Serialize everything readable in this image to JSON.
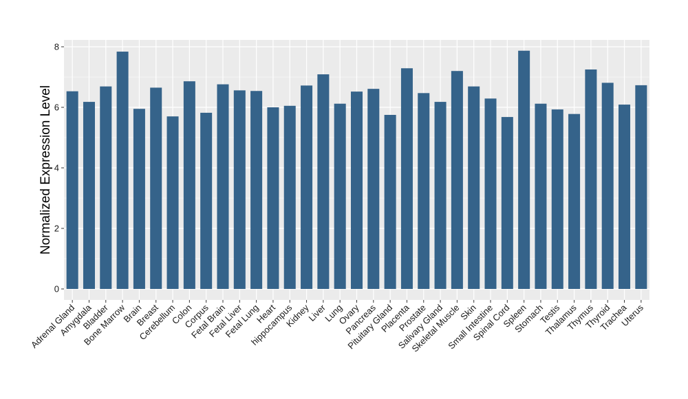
{
  "chart_data": {
    "type": "bar",
    "title": "",
    "xlabel": "",
    "ylabel": "Normalized Expression Level",
    "ylim": [
      0,
      8.2
    ],
    "yticks": [
      0,
      2,
      4,
      6,
      8
    ],
    "grid": true,
    "legend": "none",
    "categories": [
      "Adrenal Gland",
      "Amygdala",
      "Bladder",
      "Bone Marrow",
      "Brain",
      "Breast",
      "Cerebellum",
      "Colon",
      "Corpus",
      "Fetal Brain",
      "Fetal Liver",
      "Fetal Lung",
      "Heart",
      "hippocampus",
      "Kidney",
      "Liver",
      "Lung",
      "Ovary",
      "Pancreas",
      "Pituitary Gland",
      "Placenta",
      "Prostate",
      "Salivary Gland",
      "Skeletal Muscle",
      "Skin",
      "Small Intestine",
      "Spinal Cord",
      "Spleen",
      "Stomach",
      "Testis",
      "Thalamus",
      "Thymus",
      "Thyroid",
      "Trachea",
      "Uterus"
    ],
    "values": [
      6.53,
      6.18,
      6.69,
      7.84,
      5.95,
      6.65,
      5.7,
      6.86,
      5.82,
      6.76,
      6.56,
      6.54,
      6.0,
      6.05,
      6.72,
      7.09,
      6.12,
      6.52,
      6.61,
      5.75,
      7.29,
      6.47,
      6.18,
      7.2,
      6.69,
      6.29,
      5.68,
      7.87,
      6.12,
      5.93,
      5.78,
      7.25,
      6.81,
      6.09,
      6.73
    ]
  },
  "colors": {
    "bar": "#35638a",
    "panel": "#ebebeb",
    "grid": "#ffffff",
    "tick": "#333333"
  }
}
